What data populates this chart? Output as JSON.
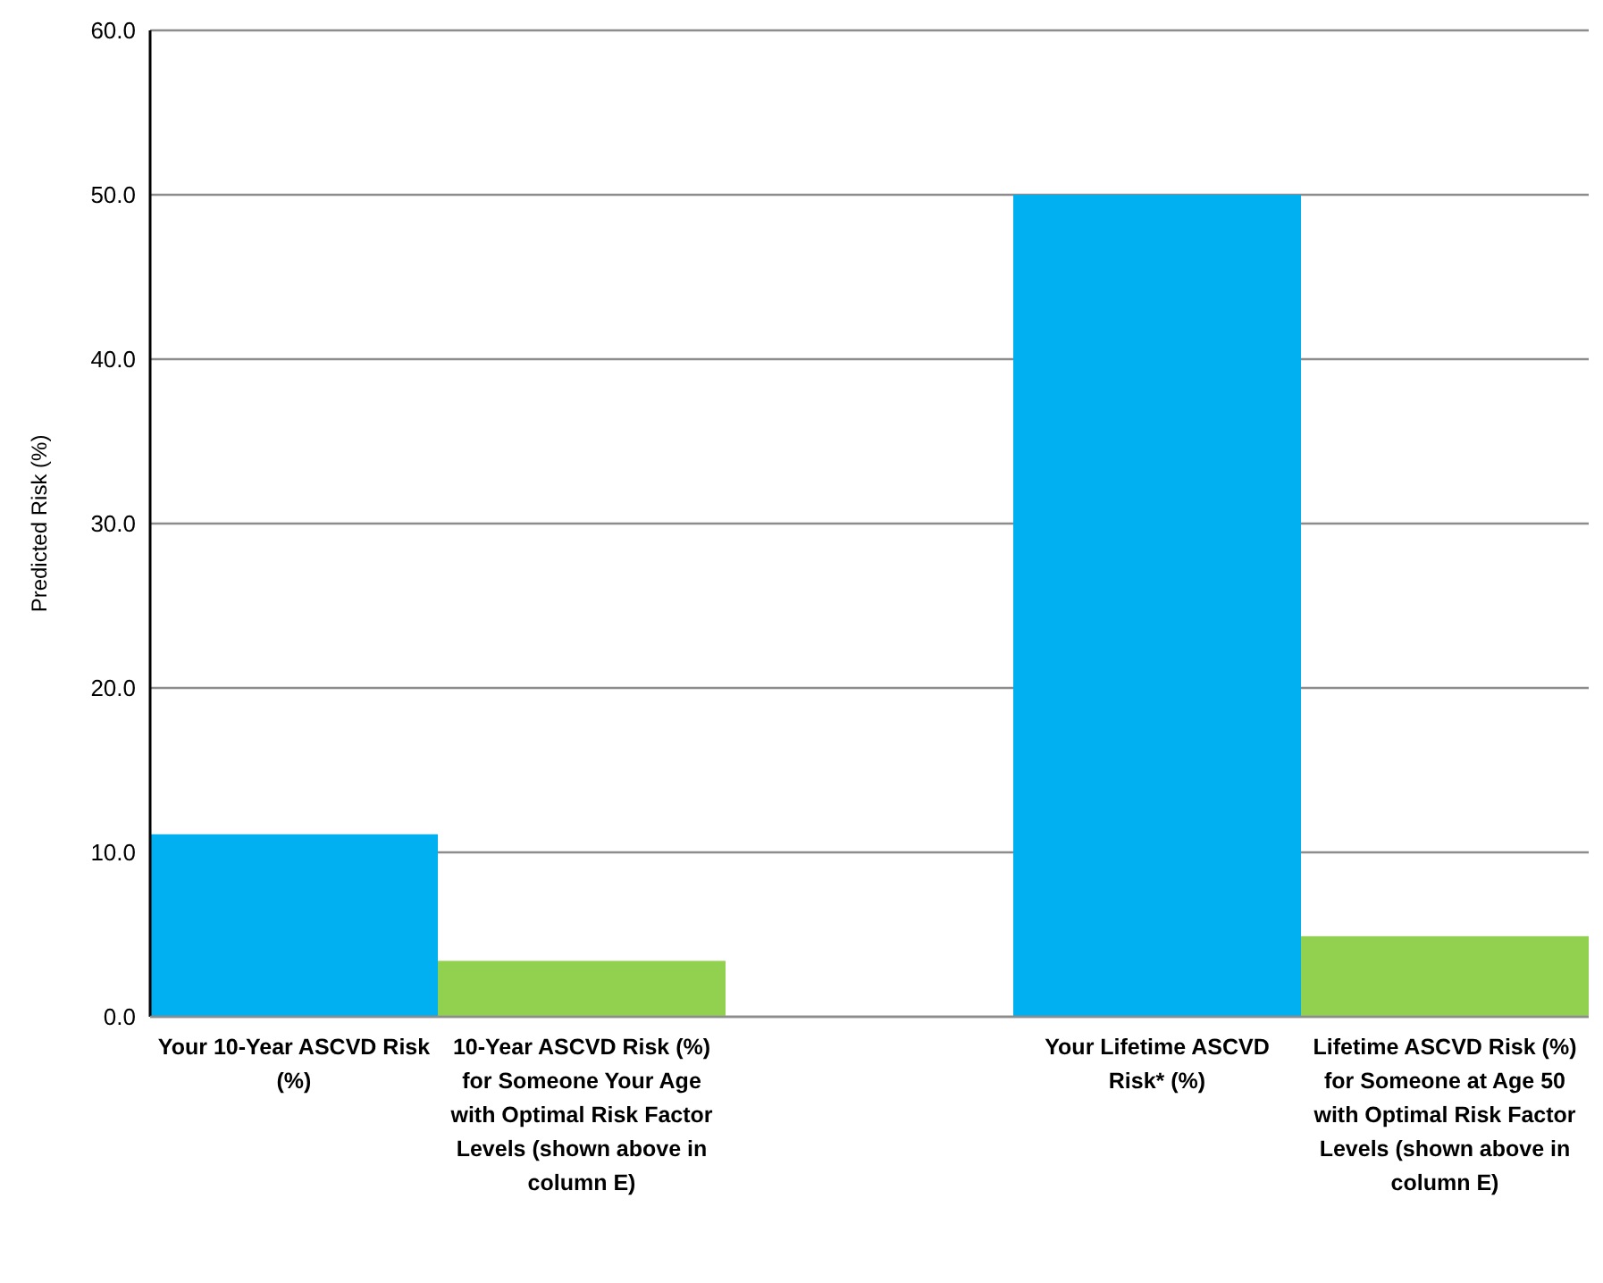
{
  "chart_data": {
    "type": "bar",
    "ylabel": "Predicted Risk (%)",
    "categories": [
      "Your 10-Year ASCVD Risk (%)",
      "10-Year ASCVD Risk (%) for Someone Your Age with Optimal Risk Factor Levels (shown above in column E)",
      null,
      "Your Lifetime ASCVD Risk* (%)",
      "Lifetime ASCVD Risk (%) for Someone at Age 50 with Optimal Risk Factor Levels (shown above in column E)"
    ],
    "values": [
      11.1,
      3.4,
      null,
      50.0,
      4.9
    ],
    "colors": [
      "#00b0f0",
      "#92d050",
      null,
      "#00b0f0",
      "#92d050"
    ],
    "ylim": [
      0,
      60
    ],
    "yticks": [
      {
        "value": 0,
        "label": "0.0"
      },
      {
        "value": 10,
        "label": "10.0"
      },
      {
        "value": 20,
        "label": "20.0"
      },
      {
        "value": 30,
        "label": "30.0"
      },
      {
        "value": 40,
        "label": "40.0"
      },
      {
        "value": 50,
        "label": "50.0"
      },
      {
        "value": 60,
        "label": "60.0"
      }
    ],
    "grid": "y"
  }
}
